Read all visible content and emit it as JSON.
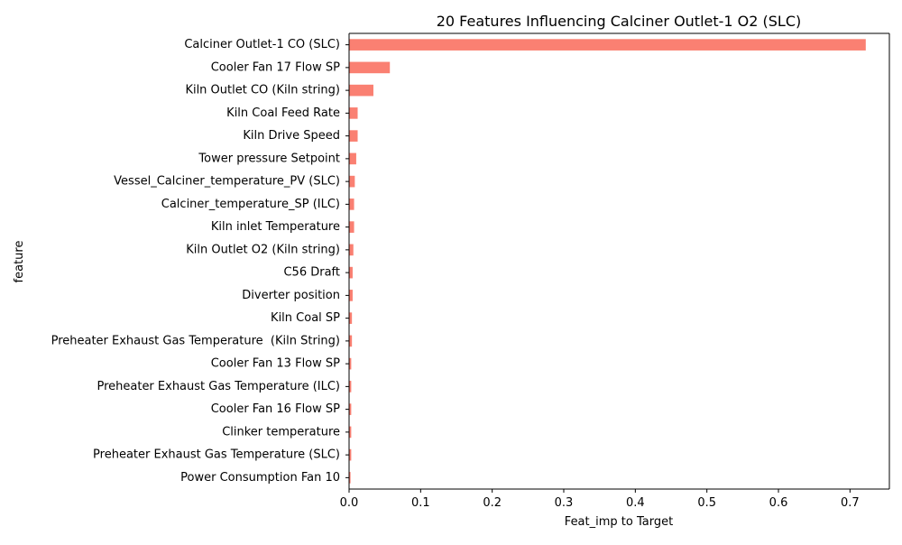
{
  "chart_data": {
    "type": "bar",
    "orientation": "horizontal",
    "title": "20 Features Influencing Calciner Outlet-1 O2 (SLC)",
    "xlabel": "Feat_imp to Target",
    "ylabel": "feature",
    "xlim": [
      0,
      0.755
    ],
    "xticks": [
      0.0,
      0.1,
      0.2,
      0.3,
      0.4,
      0.5,
      0.6,
      0.7
    ],
    "xtick_labels": [
      "0.0",
      "0.1",
      "0.2",
      "0.3",
      "0.4",
      "0.5",
      "0.6",
      "0.7"
    ],
    "bar_color": "#fa8072",
    "grid": false,
    "categories": [
      "Calciner Outlet-1 CO (SLC)",
      "Cooler Fan 17 Flow SP",
      "Kiln Outlet CO (Kiln string)",
      "Kiln Coal Feed Rate",
      "Kiln Drive Speed",
      "Tower pressure Setpoint",
      "Vessel_Calciner_temperature_PV (SLC)",
      "Calciner_temperature_SP (ILC)",
      "Kiln inlet Temperature",
      "Kiln Outlet O2 (Kiln string)",
      "C56 Draft",
      "Diverter position",
      "Kiln Coal SP",
      "Preheater Exhaust Gas Temperature  (Kiln String)",
      "Cooler Fan 13 Flow SP",
      "Preheater Exhaust Gas Temperature (ILC)",
      "Cooler Fan 16 Flow SP",
      "Clinker temperature",
      "Preheater Exhaust Gas Temperature (SLC)",
      "Power Consumption Fan 10"
    ],
    "values": [
      0.722,
      0.057,
      0.034,
      0.012,
      0.012,
      0.01,
      0.008,
      0.007,
      0.007,
      0.006,
      0.005,
      0.005,
      0.004,
      0.004,
      0.003,
      0.003,
      0.003,
      0.003,
      0.003,
      0.002
    ]
  }
}
